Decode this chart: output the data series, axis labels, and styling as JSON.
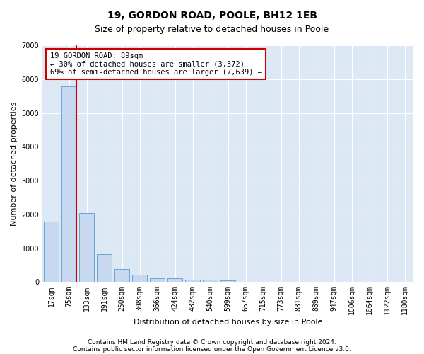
{
  "title": "19, GORDON ROAD, POOLE, BH12 1EB",
  "subtitle": "Size of property relative to detached houses in Poole",
  "xlabel": "Distribution of detached houses by size in Poole",
  "ylabel": "Number of detached properties",
  "categories": [
    "17sqm",
    "75sqm",
    "133sqm",
    "191sqm",
    "250sqm",
    "308sqm",
    "366sqm",
    "424sqm",
    "482sqm",
    "540sqm",
    "599sqm",
    "657sqm",
    "715sqm",
    "773sqm",
    "831sqm",
    "889sqm",
    "947sqm",
    "1006sqm",
    "1064sqm",
    "1122sqm",
    "1180sqm"
  ],
  "values": [
    1780,
    5780,
    2050,
    820,
    380,
    220,
    115,
    110,
    75,
    65,
    55,
    0,
    0,
    0,
    0,
    0,
    0,
    0,
    0,
    0,
    0
  ],
  "bar_color": "#c6d9f0",
  "bar_edge_color": "#5b9bd5",
  "highlight_color": "#cc0000",
  "annotation_text": "19 GORDON ROAD: 89sqm\n← 30% of detached houses are smaller (3,372)\n69% of semi-detached houses are larger (7,639) →",
  "annotation_box_color": "#ffffff",
  "annotation_box_edge": "#cc0000",
  "ylim": [
    0,
    7000
  ],
  "yticks": [
    0,
    1000,
    2000,
    3000,
    4000,
    5000,
    6000,
    7000
  ],
  "footer_line1": "Contains HM Land Registry data © Crown copyright and database right 2024.",
  "footer_line2": "Contains public sector information licensed under the Open Government Licence v3.0.",
  "bg_color": "#ffffff",
  "plot_bg_color": "#dde8f5",
  "grid_color": "#ffffff",
  "title_fontsize": 10,
  "subtitle_fontsize": 9,
  "axis_label_fontsize": 8,
  "tick_fontsize": 7,
  "footer_fontsize": 6.5,
  "annotation_fontsize": 7.5
}
